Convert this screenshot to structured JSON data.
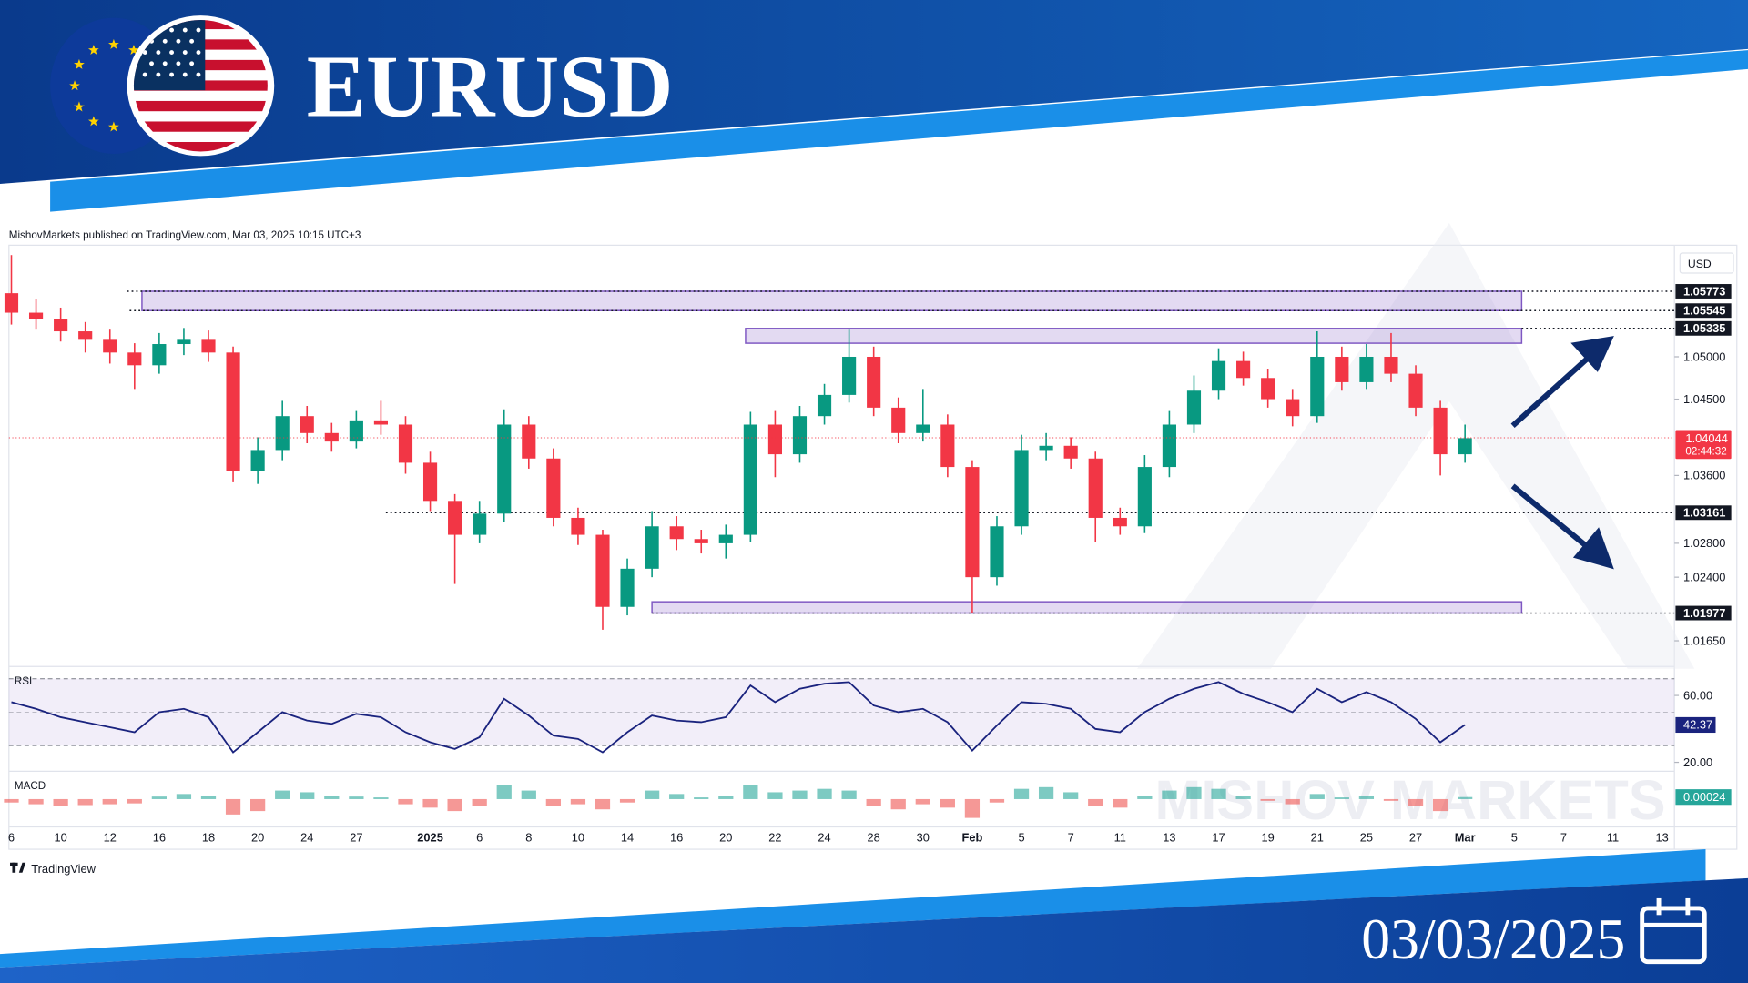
{
  "header": {
    "title": "EURUSD",
    "date": "03/03/2025"
  },
  "chart_data": {
    "type": "candlestick",
    "attribution": "MishovMarkets published on TradingView.com, Mar 03, 2025 10:15 UTC+3",
    "currency": "USD",
    "footer": "TradingView",
    "watermark": "MISHOV MARKETS",
    "up_color": "#089981",
    "down_color": "#f23645",
    "zone_color": "#7e57c2",
    "xlim": [
      -0.1,
      67.5
    ],
    "xticks": [
      {
        "value": 0,
        "label": "6"
      },
      {
        "value": 2,
        "label": "10"
      },
      {
        "value": 4,
        "label": "12"
      },
      {
        "value": 6,
        "label": "16"
      },
      {
        "value": 8,
        "label": "18"
      },
      {
        "value": 10,
        "label": "20"
      },
      {
        "value": 12,
        "label": "24"
      },
      {
        "value": 14,
        "label": "27"
      },
      {
        "value": 17,
        "label": "2025"
      },
      {
        "value": 19,
        "label": "6"
      },
      {
        "value": 21,
        "label": "8"
      },
      {
        "value": 23,
        "label": "10"
      },
      {
        "value": 25,
        "label": "14"
      },
      {
        "value": 27,
        "label": "16"
      },
      {
        "value": 29,
        "label": "20"
      },
      {
        "value": 31,
        "label": "22"
      },
      {
        "value": 33,
        "label": "24"
      },
      {
        "value": 35,
        "label": "28"
      },
      {
        "value": 37,
        "label": "30"
      },
      {
        "value": 39,
        "label": "Feb"
      },
      {
        "value": 41,
        "label": "5"
      },
      {
        "value": 43,
        "label": "7"
      },
      {
        "value": 45,
        "label": "11"
      },
      {
        "value": 47,
        "label": "13"
      },
      {
        "value": 49,
        "label": "17"
      },
      {
        "value": 51,
        "label": "19"
      },
      {
        "value": 53,
        "label": "21"
      },
      {
        "value": 55,
        "label": "25"
      },
      {
        "value": 57,
        "label": "27"
      },
      {
        "value": 59,
        "label": "Mar"
      },
      {
        "value": 61,
        "label": "5"
      },
      {
        "value": 63,
        "label": "7"
      },
      {
        "value": 65,
        "label": "11"
      },
      {
        "value": 67,
        "label": "13"
      }
    ],
    "ylim": [
      1.0136,
      1.0629
    ],
    "yticks": [
      {
        "value": 1.05,
        "label": "1.05000"
      },
      {
        "value": 1.045,
        "label": "1.04500"
      },
      {
        "value": 1.036,
        "label": "1.03600"
      },
      {
        "value": 1.028,
        "label": "1.02800"
      },
      {
        "value": 1.024,
        "label": "1.02400"
      },
      {
        "value": 1.0165,
        "label": "1.01650"
      }
    ],
    "candles": {
      "open": [
        1.0575,
        1.0552,
        1.0545,
        1.053,
        1.052,
        1.0505,
        1.049,
        1.0515,
        1.052,
        1.0505,
        1.0365,
        1.039,
        1.043,
        1.041,
        1.04,
        1.0425,
        1.042,
        1.0375,
        1.033,
        1.029,
        1.0315,
        1.042,
        1.038,
        1.031,
        1.029,
        1.0205,
        1.025,
        1.03,
        1.0285,
        1.028,
        1.029,
        1.042,
        1.0385,
        1.043,
        1.0455,
        1.05,
        1.044,
        1.041,
        1.042,
        1.037,
        1.024,
        1.03,
        1.039,
        1.0395,
        1.038,
        1.031,
        1.03,
        1.037,
        1.042,
        1.046,
        1.0495,
        1.0475,
        1.045,
        1.043,
        1.05,
        1.047,
        1.05,
        1.048,
        1.044,
        1.0385
      ],
      "high": [
        1.062,
        1.0568,
        1.0558,
        1.0541,
        1.0532,
        1.0516,
        1.0528,
        1.0534,
        1.0531,
        1.0512,
        1.0405,
        1.0448,
        1.0442,
        1.0422,
        1.0436,
        1.0448,
        1.043,
        1.0388,
        1.0338,
        1.033,
        1.0438,
        1.043,
        1.0392,
        1.0322,
        1.0296,
        1.0262,
        1.0318,
        1.0312,
        1.0296,
        1.0302,
        1.0435,
        1.0436,
        1.0442,
        1.0468,
        1.0532,
        1.0512,
        1.0452,
        1.0462,
        1.0432,
        1.0378,
        1.0312,
        1.0408,
        1.041,
        1.0405,
        1.0388,
        1.0322,
        1.0384,
        1.0436,
        1.0478,
        1.051,
        1.0506,
        1.0486,
        1.0462,
        1.053,
        1.0512,
        1.0515,
        1.0528,
        1.049,
        1.0448,
        1.042
      ],
      "low": [
        1.0538,
        1.0532,
        1.0518,
        1.0505,
        1.0492,
        1.0462,
        1.048,
        1.0502,
        1.0494,
        1.0352,
        1.035,
        1.0378,
        1.0398,
        1.0388,
        1.0392,
        1.0408,
        1.0362,
        1.0318,
        1.0232,
        1.028,
        1.0305,
        1.0368,
        1.03,
        1.0278,
        1.0178,
        1.0195,
        1.024,
        1.0272,
        1.0268,
        1.0262,
        1.0282,
        1.0358,
        1.0375,
        1.042,
        1.0446,
        1.043,
        1.0398,
        1.04,
        1.0358,
        1.0198,
        1.023,
        1.029,
        1.0378,
        1.0368,
        1.0282,
        1.029,
        1.0292,
        1.0358,
        1.041,
        1.045,
        1.0466,
        1.044,
        1.0418,
        1.0422,
        1.046,
        1.0462,
        1.047,
        1.043,
        1.036,
        1.0375
      ],
      "close": [
        1.0552,
        1.0545,
        1.053,
        1.052,
        1.0505,
        1.049,
        1.0515,
        1.052,
        1.0505,
        1.0365,
        1.039,
        1.043,
        1.041,
        1.04,
        1.0425,
        1.042,
        1.0375,
        1.033,
        1.029,
        1.0315,
        1.042,
        1.038,
        1.031,
        1.029,
        1.0205,
        1.025,
        1.03,
        1.0285,
        1.028,
        1.029,
        1.042,
        1.0385,
        1.043,
        1.0455,
        1.05,
        1.044,
        1.041,
        1.042,
        1.037,
        1.024,
        1.03,
        1.039,
        1.0395,
        1.038,
        1.031,
        1.03,
        1.037,
        1.042,
        1.046,
        1.0495,
        1.0475,
        1.045,
        1.043,
        1.05,
        1.047,
        1.05,
        1.048,
        1.044,
        1.0385,
        1.0404
      ]
    },
    "current_price": {
      "value": 1.04044,
      "countdown": "02:44:32"
    },
    "levels": [
      {
        "value": 1.05773,
        "start": 4.7
      },
      {
        "value": 1.05545,
        "start": 4.8
      },
      {
        "value": 1.05335,
        "start": 61.3
      },
      {
        "value": 1.03161,
        "start": 15.2
      },
      {
        "value": 1.01977,
        "start": 26.0
      }
    ],
    "zones": [
      {
        "low": 1.05545,
        "high": 1.05773,
        "start": 5.3,
        "end": 61.3
      },
      {
        "low": 1.0516,
        "high": 1.05335,
        "start": 29.8,
        "end": 61.3
      },
      {
        "low": 1.01977,
        "high": 1.0211,
        "start": 26.0,
        "end": 61.3
      }
    ],
    "rsi": {
      "label": "RSI",
      "color": "#1a237e",
      "ylim": [
        16,
        76
      ],
      "yticks": [
        {
          "value": 60,
          "label": "60.00"
        },
        {
          "value": 20,
          "label": "20.00"
        }
      ],
      "band": [
        30,
        70
      ],
      "middle": 50,
      "values": [
        56,
        52,
        47,
        44,
        41,
        38,
        50,
        52,
        47,
        26,
        38,
        50,
        45,
        43,
        49,
        47,
        38,
        32,
        28,
        35,
        58,
        48,
        36,
        34,
        26,
        38,
        48,
        45,
        44,
        47,
        66,
        56,
        64,
        67,
        68,
        54,
        50,
        52,
        44,
        27,
        42,
        56,
        55,
        52,
        40,
        38,
        50,
        58,
        64,
        68,
        61,
        56,
        50,
        64,
        56,
        62,
        56,
        46,
        32,
        42.37
      ]
    },
    "macd": {
      "label": "MACD",
      "color_up": "#26a69a",
      "color_down": "#ef5350",
      "ylim": [
        -0.003,
        0.003
      ],
      "values": [
        -0.0004,
        -0.0006,
        -0.0008,
        -0.0007,
        -0.0006,
        -0.0005,
        0.0003,
        0.0006,
        0.0004,
        -0.0018,
        -0.0014,
        0.001,
        0.0008,
        0.0004,
        0.0003,
        0.0002,
        -0.0006,
        -0.001,
        -0.0014,
        -0.0008,
        0.0016,
        0.001,
        -0.0008,
        -0.0006,
        -0.0012,
        -0.0004,
        0.001,
        0.0006,
        0.0002,
        0.0004,
        0.0016,
        0.0008,
        0.001,
        0.0012,
        0.001,
        -0.0008,
        -0.0012,
        -0.0006,
        -0.001,
        -0.0022,
        -0.0004,
        0.0012,
        0.0014,
        0.0008,
        -0.0008,
        -0.001,
        0.0004,
        0.001,
        0.0014,
        0.0012,
        0.0004,
        -0.0002,
        -0.0006,
        0.0006,
        0.0002,
        0.0004,
        -0.0002,
        -0.0008,
        -0.0014,
        0.00024
      ]
    }
  }
}
